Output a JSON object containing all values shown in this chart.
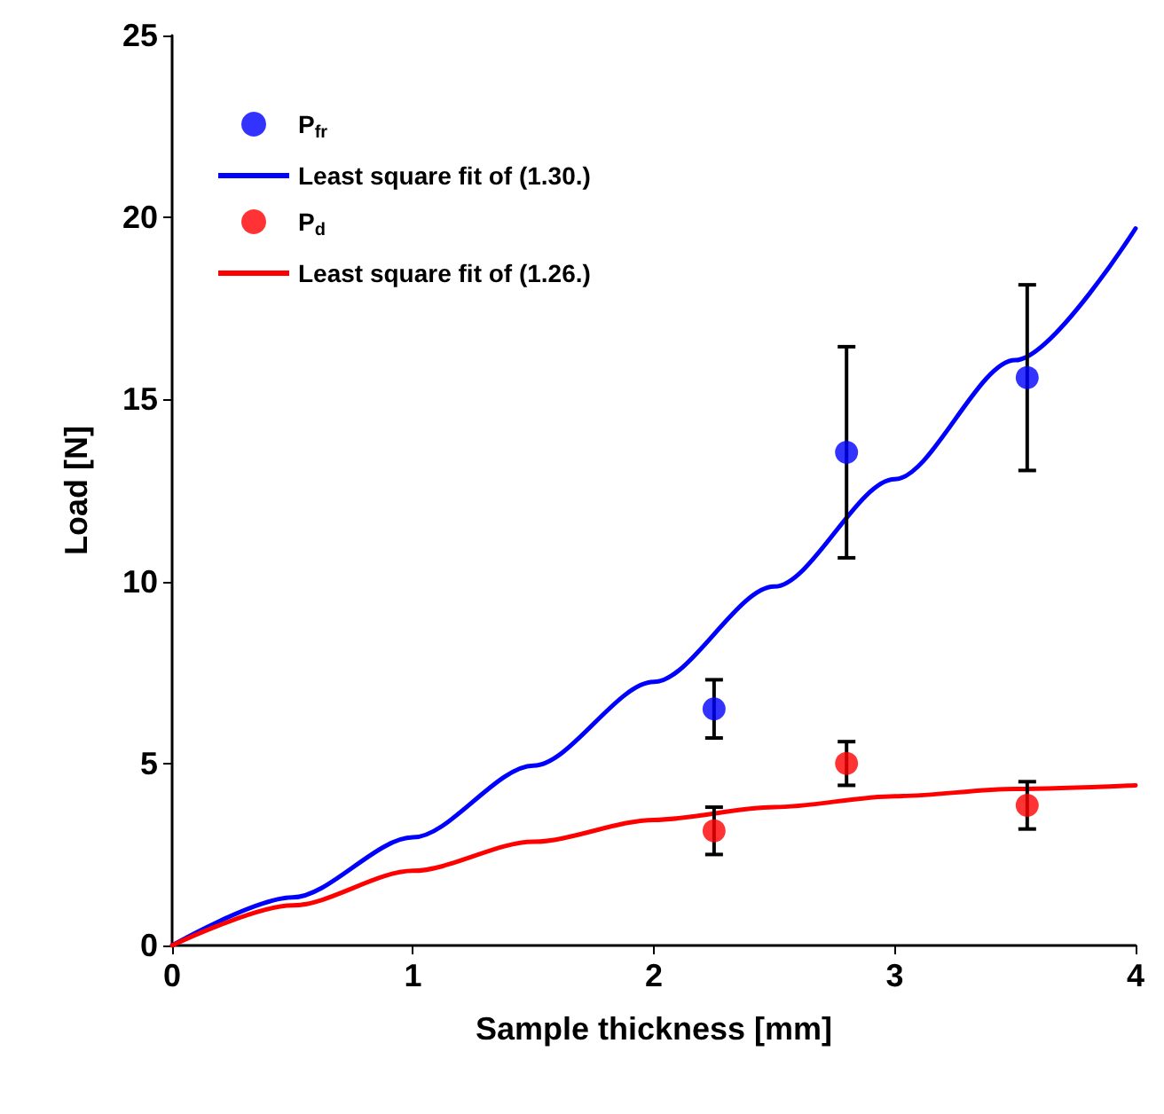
{
  "chart_data": {
    "type": "scatter",
    "xlabel": "Sample thickness [mm]",
    "ylabel": "Load [N]",
    "xlim": [
      0,
      4
    ],
    "xticks": [
      0,
      1,
      2,
      3,
      4
    ],
    "ylim": [
      0,
      25
    ],
    "yticks": [
      0,
      5,
      10,
      15,
      20,
      25
    ],
    "grid": false,
    "legend": "top left",
    "series": [
      {
        "name": "P$_{fr}$",
        "color": "#0000ff",
        "marker": "circle",
        "x": [
          2.25,
          2.8,
          3.55
        ],
        "values": [
          6.5,
          13.55,
          15.6
        ],
        "errors": [
          0.8,
          2.9,
          2.55
        ]
      },
      {
        "type": "line",
        "name": "Least square fit of (1.30.)",
        "color": "#0000ff",
        "marker": "none",
        "x": [
          0,
          0.5,
          1,
          1.5,
          2,
          2.5,
          3,
          3.5,
          4
        ],
        "values": [
          0,
          1.32,
          2.97,
          4.94,
          7.24,
          9.86,
          12.81,
          16.08,
          19.7
        ]
      },
      {
        "name": "P$_{d}$",
        "color": "#ff0000",
        "marker": "circle",
        "x": [
          2.25,
          2.8,
          3.55
        ],
        "values": [
          3.15,
          5.0,
          3.85
        ],
        "errors": [
          0.65,
          0.6,
          0.65
        ]
      },
      {
        "type": "line",
        "name": "Least square fit of (1.26.)",
        "color": "#ff0000",
        "marker": "none",
        "x": [
          0,
          0.5,
          1,
          1.5,
          2,
          2.5,
          3,
          3.5,
          4
        ],
        "values": [
          0,
          1.1,
          2.05,
          2.85,
          3.45,
          3.8,
          4.1,
          4.3,
          4.4
        ]
      }
    ]
  }
}
